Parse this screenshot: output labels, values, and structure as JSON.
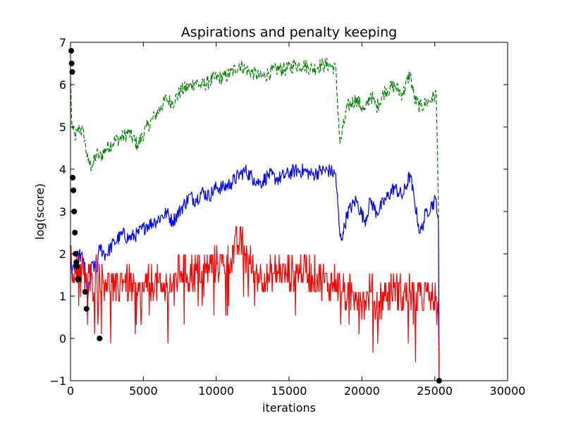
{
  "chart_data": {
    "type": "line",
    "title": "Aspirations and penalty keeping",
    "xlabel": "iterations",
    "ylabel": "log(score)",
    "xlim": [
      0,
      30000
    ],
    "ylim": [
      -1,
      7
    ],
    "x_ticks": [
      0,
      5000,
      10000,
      15000,
      20000,
      25000,
      30000
    ],
    "x_tick_labels": [
      "0",
      "5000",
      "10000",
      "15000",
      "20000",
      "25000",
      "30000"
    ],
    "y_ticks": [
      -1,
      0,
      1,
      2,
      3,
      4,
      5,
      6,
      7
    ],
    "y_tick_labels": [
      "−1",
      "0",
      "1",
      "2",
      "3",
      "4",
      "5",
      "6",
      "7"
    ],
    "grid": false,
    "legend": "none",
    "series": [
      {
        "color": "#008000",
        "style": "dashed",
        "x": [
          0,
          100,
          300,
          600,
          900,
          1200,
          1500,
          1800,
          2000,
          2400,
          3000,
          3600,
          4000,
          4600,
          5200,
          5800,
          6200,
          6600,
          7000,
          7600,
          8200,
          8600,
          9000,
          9500,
          10000,
          10500,
          11000,
          11600,
          12000,
          12600,
          13000,
          13600,
          14200,
          14800,
          15400,
          16000,
          16600,
          17200,
          17800,
          18200,
          18500,
          18700,
          19000,
          19600,
          20200,
          20600,
          21000,
          21600,
          22200,
          22800,
          23300,
          23600,
          24000,
          24400,
          24800,
          25100,
          25250,
          25300
        ],
        "y": [
          6.2,
          5.0,
          4.8,
          5.0,
          4.9,
          4.2,
          4.1,
          4.4,
          4.3,
          4.5,
          4.7,
          4.8,
          4.9,
          4.6,
          5.0,
          5.3,
          5.5,
          5.7,
          5.6,
          5.9,
          6.0,
          6.1,
          6.0,
          6.1,
          6.2,
          6.2,
          6.3,
          6.5,
          6.4,
          6.3,
          6.2,
          6.3,
          6.4,
          6.4,
          6.5,
          6.5,
          6.4,
          6.5,
          6.5,
          6.4,
          4.6,
          5.0,
          5.5,
          5.7,
          5.4,
          5.8,
          5.5,
          5.9,
          6.0,
          5.8,
          6.3,
          5.7,
          5.5,
          5.6,
          5.7,
          5.8,
          3.3,
          -1.0
        ]
      },
      {
        "color": "#0000ff",
        "style": "solid",
        "x": [
          0,
          100,
          300,
          600,
          900,
          1200,
          1500,
          1800,
          2000,
          2400,
          3000,
          3600,
          4000,
          4600,
          5200,
          5800,
          6200,
          6600,
          7000,
          7600,
          8200,
          8600,
          9000,
          9500,
          10000,
          10500,
          11000,
          11600,
          12000,
          12600,
          13000,
          13600,
          14200,
          14800,
          15400,
          16000,
          16600,
          17200,
          17800,
          18200,
          18500,
          18700,
          19000,
          19600,
          20200,
          20600,
          21000,
          21600,
          22200,
          22800,
          23300,
          23600,
          24000,
          24400,
          24800,
          25100,
          25250,
          25300
        ],
        "y": [
          2.0,
          1.5,
          1.8,
          2.0,
          1.9,
          1.0,
          1.8,
          1.6,
          2.2,
          2.0,
          2.3,
          2.5,
          2.4,
          2.5,
          2.7,
          2.8,
          2.9,
          3.0,
          2.8,
          3.1,
          3.4,
          3.3,
          3.5,
          3.4,
          3.6,
          3.6,
          3.7,
          3.9,
          4.0,
          3.8,
          3.7,
          3.9,
          3.8,
          3.9,
          4.0,
          4.0,
          3.9,
          4.0,
          4.0,
          3.9,
          2.4,
          2.5,
          3.0,
          3.3,
          2.8,
          3.3,
          3.0,
          3.3,
          3.6,
          3.4,
          3.9,
          3.3,
          2.5,
          3.0,
          3.2,
          3.3,
          2.8,
          -1.0
        ]
      },
      {
        "color": "#ff0000",
        "style": "solid",
        "x": [
          0,
          100,
          300,
          600,
          900,
          1200,
          1500,
          1800,
          2000,
          2400,
          3000,
          3600,
          4000,
          4600,
          5200,
          5800,
          6200,
          6600,
          7000,
          7600,
          8200,
          8600,
          9000,
          9500,
          10000,
          10500,
          11000,
          11600,
          12000,
          12600,
          13000,
          13600,
          14200,
          14800,
          15400,
          16000,
          16600,
          17200,
          17800,
          18200,
          18500,
          18700,
          19000,
          19600,
          20200,
          20600,
          21000,
          21600,
          22200,
          22800,
          23300,
          23600,
          24000,
          24400,
          24800,
          25100,
          25250,
          25300
        ],
        "y": [
          2.0,
          1.4,
          1.6,
          1.7,
          1.5,
          1.4,
          1.3,
          1.6,
          1.5,
          1.4,
          1.1,
          1.4,
          1.3,
          1.0,
          1.2,
          1.4,
          1.1,
          1.2,
          1.3,
          1.6,
          1.5,
          1.6,
          1.6,
          1.7,
          1.8,
          1.7,
          1.9,
          2.3,
          2.0,
          1.6,
          1.5,
          1.4,
          1.6,
          1.5,
          1.6,
          1.6,
          1.5,
          1.4,
          1.3,
          1.4,
          1.2,
          1.1,
          1.0,
          1.1,
          0.9,
          1.1,
          0.8,
          1.0,
          1.2,
          1.0,
          1.1,
          0.9,
          1.0,
          1.1,
          0.9,
          1.0,
          0.5,
          -1.0
        ]
      },
      {
        "color": "#000000",
        "style": "markers",
        "x": [
          50,
          80,
          120,
          150,
          200,
          250,
          300,
          350,
          400,
          450,
          500,
          550,
          1000,
          1100,
          2000,
          25300
        ],
        "y": [
          6.8,
          6.5,
          6.3,
          3.8,
          3.5,
          3.0,
          2.5,
          2.0,
          1.8,
          1.7,
          1.4,
          1.4,
          1.1,
          0.7,
          0.0,
          -1.0
        ]
      }
    ]
  }
}
